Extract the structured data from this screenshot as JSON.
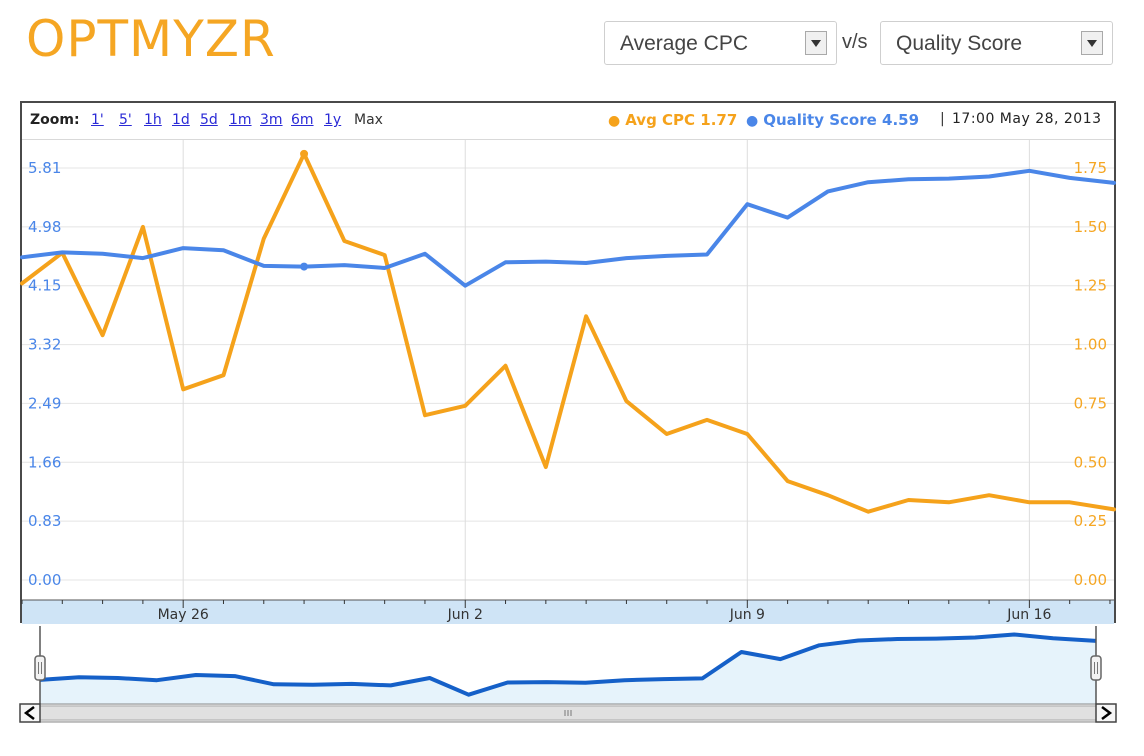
{
  "header": {
    "logo": "OPTMYZR",
    "metric_left": "Average CPC",
    "vs": "v/s",
    "metric_right": "Quality Score"
  },
  "toolbar": {
    "zoom_label": "Zoom:",
    "zoom_options": [
      "1'",
      "5'",
      "1h",
      "1d",
      "5d",
      "1m",
      "3m",
      "6m",
      "1y"
    ],
    "zoom_max": "Max"
  },
  "legend": {
    "cpc_label": "Avg CPC 1.77",
    "qs_label": "Quality Score 4.59",
    "separator": "|",
    "datetime": "17:00 May 28, 2013"
  },
  "colors": {
    "cpc": "#f5a21b",
    "qs": "#4a86e8",
    "navigator": "#1560c8",
    "navigator_fill": "#e6f3fb",
    "axis_band": "#cfe4f6",
    "left_axis_text": "#4a86e8",
    "right_axis_text": "#f5a623"
  },
  "chart_data": {
    "type": "line",
    "title": "",
    "x_tick_labels": [
      "May 26",
      "Jun 2",
      "Jun 9",
      "Jun 16"
    ],
    "x_tick_days": [
      26,
      33,
      40,
      47
    ],
    "x_start_day": 22,
    "x_end_day": 49.1,
    "left_axis": {
      "ticks": [
        "0.00",
        "0.83",
        "1.66",
        "2.49",
        "3.32",
        "4.15",
        "4.98",
        "5.81"
      ],
      "range": [
        0,
        5.81
      ]
    },
    "right_axis": {
      "ticks": [
        "0.00",
        "0.25",
        "0.50",
        "0.75",
        "1.00",
        "1.25",
        "1.50",
        "1.75"
      ],
      "range": [
        0,
        1.75
      ]
    },
    "series": [
      {
        "name": "Avg CPC",
        "axis": "right",
        "points": [
          [
            22.0,
            1.26
          ],
          [
            23.0,
            1.39
          ],
          [
            24.0,
            1.04
          ],
          [
            25.0,
            1.5
          ],
          [
            26.0,
            0.81
          ],
          [
            27.0,
            0.87
          ],
          [
            28.0,
            1.45
          ],
          [
            29.0,
            1.81
          ],
          [
            30.0,
            1.44
          ],
          [
            31.0,
            1.38
          ],
          [
            32.0,
            0.7
          ],
          [
            33.0,
            0.74
          ],
          [
            34.0,
            0.91
          ],
          [
            35.0,
            0.48
          ],
          [
            36.0,
            1.12
          ],
          [
            37.0,
            0.76
          ],
          [
            38.0,
            0.62
          ],
          [
            39.0,
            0.68
          ],
          [
            40.0,
            0.62
          ],
          [
            41.0,
            0.42
          ],
          [
            42.0,
            0.36
          ],
          [
            43.0,
            0.29
          ],
          [
            44.0,
            0.34
          ],
          [
            45.0,
            0.33
          ],
          [
            46.0,
            0.36
          ],
          [
            47.0,
            0.33
          ],
          [
            48.0,
            0.33
          ],
          [
            49.1,
            0.3
          ]
        ]
      },
      {
        "name": "Quality Score",
        "axis": "left",
        "points": [
          [
            22.0,
            4.55
          ],
          [
            23.0,
            4.62
          ],
          [
            24.0,
            4.6
          ],
          [
            25.0,
            4.54
          ],
          [
            26.0,
            4.68
          ],
          [
            27.0,
            4.65
          ],
          [
            28.0,
            4.43
          ],
          [
            29.0,
            4.42
          ],
          [
            30.0,
            4.44
          ],
          [
            31.0,
            4.4
          ],
          [
            32.0,
            4.6
          ],
          [
            33.0,
            4.15
          ],
          [
            34.0,
            4.48
          ],
          [
            35.0,
            4.49
          ],
          [
            36.0,
            4.47
          ],
          [
            37.0,
            4.54
          ],
          [
            38.0,
            4.57
          ],
          [
            39.0,
            4.59
          ],
          [
            40.0,
            5.3
          ],
          [
            41.0,
            5.11
          ],
          [
            42.0,
            5.48
          ],
          [
            43.0,
            5.61
          ],
          [
            44.0,
            5.65
          ],
          [
            45.0,
            5.66
          ],
          [
            46.0,
            5.69
          ],
          [
            47.0,
            5.77
          ],
          [
            48.0,
            5.67
          ],
          [
            49.1,
            5.6
          ]
        ]
      }
    ],
    "navigator_points": [
      [
        22.0,
        4.55
      ],
      [
        23.0,
        4.62
      ],
      [
        24.0,
        4.6
      ],
      [
        25.0,
        4.54
      ],
      [
        26.0,
        4.68
      ],
      [
        27.0,
        4.65
      ],
      [
        28.0,
        4.43
      ],
      [
        29.0,
        4.42
      ],
      [
        30.0,
        4.44
      ],
      [
        31.0,
        4.4
      ],
      [
        32.0,
        4.6
      ],
      [
        33.0,
        4.15
      ],
      [
        34.0,
        4.48
      ],
      [
        35.0,
        4.49
      ],
      [
        36.0,
        4.47
      ],
      [
        37.0,
        4.54
      ],
      [
        38.0,
        4.57
      ],
      [
        39.0,
        4.59
      ],
      [
        40.0,
        5.3
      ],
      [
        41.0,
        5.11
      ],
      [
        42.0,
        5.48
      ],
      [
        43.0,
        5.61
      ],
      [
        44.0,
        5.65
      ],
      [
        45.0,
        5.66
      ],
      [
        46.0,
        5.69
      ],
      [
        47.0,
        5.77
      ],
      [
        48.0,
        5.67
      ],
      [
        49.1,
        5.6
      ]
    ],
    "grid": true,
    "legend_position": "top-right"
  }
}
